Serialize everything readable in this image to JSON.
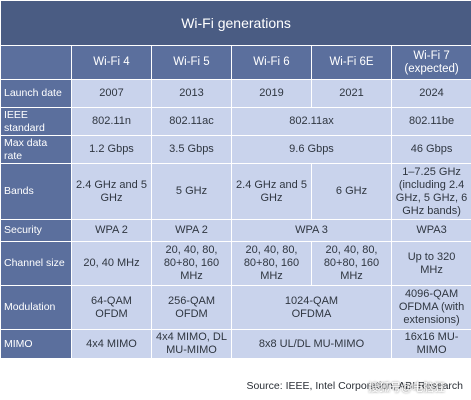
{
  "table": {
    "title": "Wi-Fi generations",
    "headers": {
      "wifi4": "Wi-Fi 4",
      "wifi5": "Wi-Fi 5",
      "wifi6": "Wi-Fi 6",
      "wifi6e": "Wi-Fi 6E",
      "wifi7_line1": "Wi-Fi 7",
      "wifi7_line2": "(expected)"
    },
    "rows": {
      "launch": {
        "label": "Launch date",
        "wifi4": "2007",
        "wifi5": "2013",
        "wifi6": "2019",
        "wifi6e": "2021",
        "wifi7": "2024"
      },
      "ieee": {
        "label": "IEEE standard",
        "wifi4": "802.11n",
        "wifi5": "802.11ac",
        "wifi6_6e": "802.11ax",
        "wifi7": "802.11be"
      },
      "max_rate": {
        "label": "Max data rate",
        "wifi4": "1.2 Gbps",
        "wifi5": "3.5 Gbps",
        "wifi6_6e": "9.6 Gbps",
        "wifi7": "46 Gbps"
      },
      "bands": {
        "label": "Bands",
        "wifi4": "2.4 GHz and 5 GHz",
        "wifi5": "5 GHz",
        "wifi6": "2.4 GHz and 5 GHz",
        "wifi6e": "6 GHz",
        "wifi7_line1": "1–7.25 GHz",
        "wifi7_line2": "(including 2.4",
        "wifi7_line3": "GHz, 5 GHz, 6",
        "wifi7_line4": "GHz bands)"
      },
      "security": {
        "label": "Security",
        "wifi4": "WPA 2",
        "wifi5": "WPA 2",
        "wifi6_6e": "WPA 3",
        "wifi7": "WPA3"
      },
      "channel": {
        "label": "Channel size",
        "wifi4": "20, 40 MHz",
        "wifi5_line1": "20, 40, 80,",
        "wifi5_line2": "80+80, 160",
        "wifi5_line3": "MHz",
        "wifi6_line1": "20, 40, 80,",
        "wifi6_line2": "80+80, 160",
        "wifi6_line3": "MHz",
        "wifi6e_line1": "20, 40, 80,",
        "wifi6e_line2": "80+80, 160",
        "wifi6e_line3": "MHz",
        "wifi7": "Up to 320 MHz"
      },
      "modulation": {
        "label": "Modulation",
        "wifi4_line1": "64-QAM",
        "wifi4_line2": "OFDM",
        "wifi5_line1": "256-QAM",
        "wifi5_line2": "OFDM",
        "wifi6_6e_line1": "1024-QAM",
        "wifi6_6e_line2": "OFDMA",
        "wifi7_line1": "4096-QAM",
        "wifi7_line2": "OFDMA (with",
        "wifi7_line3": "extensions)"
      },
      "mimo": {
        "label": "MIMO",
        "wifi4": "4x4 MIMO",
        "wifi5_line1": "4x4 MIMO, DL",
        "wifi5_line2": "MU-MIMO",
        "wifi6_6e": "8x8 UL/DL MU-MIMO",
        "wifi7_line1": "16x16 MU-",
        "wifi7_line2": "MIMO"
      }
    }
  },
  "footer": {
    "source": "Source: IEEE, Intel Corporation, ABI Research",
    "watermark": "搜狐号@电脑狂"
  }
}
